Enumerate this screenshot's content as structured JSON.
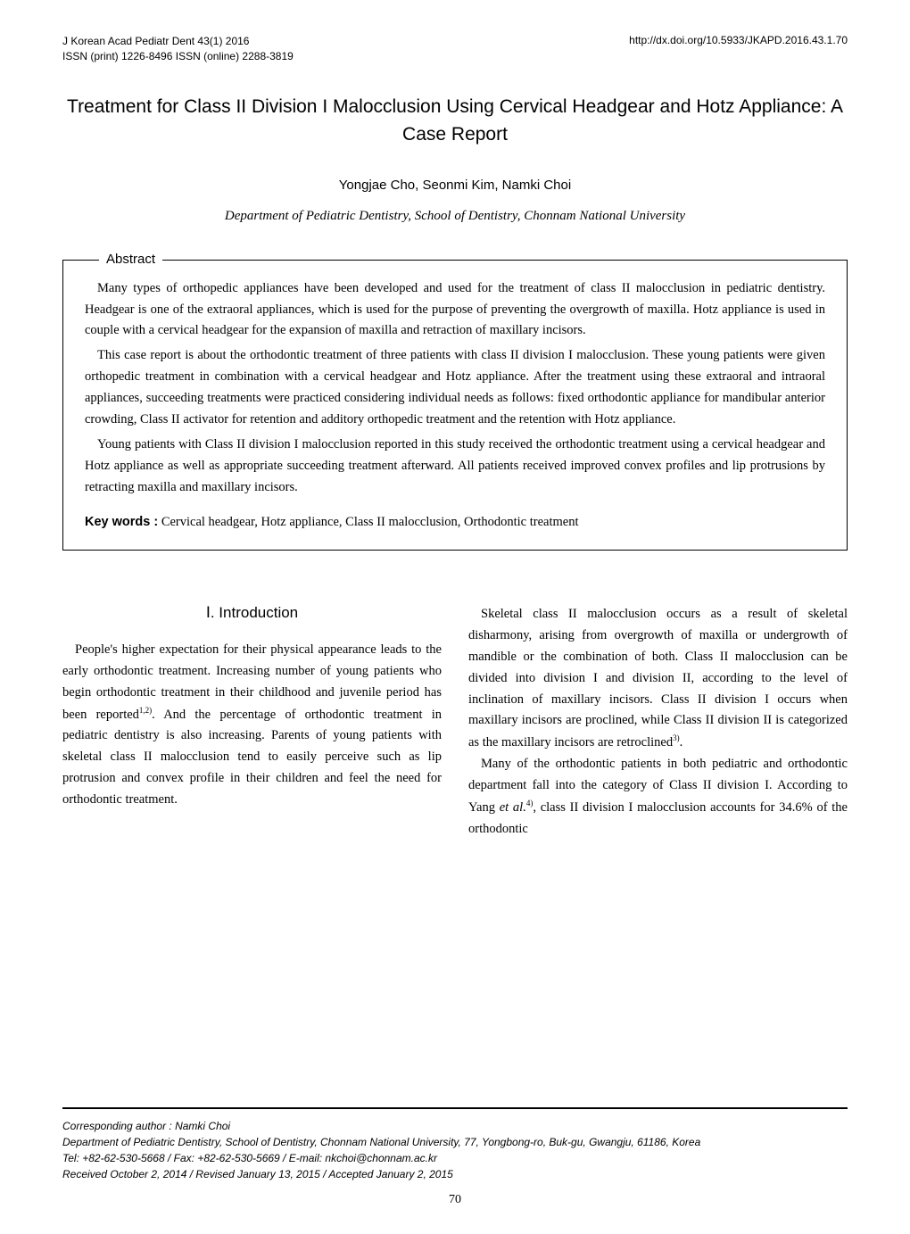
{
  "header": {
    "journal_line": "J Korean Acad Pediatr Dent 43(1) 2016",
    "issn_line": "ISSN (print) 1226-8496 ISSN (online) 2288-3819",
    "doi": "http://dx.doi.org/10.5933/JKAPD.2016.43.1.70"
  },
  "title": "Treatment for Class II Division I Malocclusion Using Cervical Headgear and Hotz Appliance: A Case Report",
  "authors": "Yongjae Cho, Seonmi Kim, Namki Choi",
  "affiliation": "Department of Pediatric Dentistry, School of Dentistry, Chonnam National University",
  "abstract": {
    "label": "Abstract",
    "p1": "Many types of orthopedic appliances have been developed and used for the treatment of class II malocclusion in pediatric dentistry. Headgear is one of the extraoral appliances, which is used for the purpose of preventing the overgrowth of maxilla. Hotz appliance is used in couple with a cervical headgear for the expansion of maxilla and retraction of maxillary incisors.",
    "p2": "This case report is about the orthodontic treatment of three patients with class II division I malocclusion. These young patients were given orthopedic treatment in combination with a cervical headgear and Hotz appliance. After the treatment using these extraoral and intraoral appliances, succeeding treatments were practiced considering individual needs as follows: fixed orthodontic appliance for mandibular anterior crowding, Class II activator for retention and additory orthopedic treatment and the retention with Hotz appliance.",
    "p3": "Young patients with Class II division I malocclusion reported in this study received the orthodontic treatment using a cervical headgear and Hotz appliance as well as appropriate succeeding treatment afterward. All patients received improved convex profiles and lip protrusions by retracting maxilla and maxillary incisors."
  },
  "keywords": {
    "label": "Key words :",
    "text": " Cervical headgear, Hotz appliance, Class II malocclusion, Orthodontic treatment"
  },
  "section_heading": "Ⅰ. Introduction",
  "intro": {
    "left": "People's higher expectation for their physical appearance leads to the early orthodontic treatment. Increasing number of young patients who begin orthodontic treatment in their childhood and juvenile period has been reported1,2). And the percentage of orthodontic treatment in pediatric dentistry is also increasing. Parents of young patients with skeletal class II malocclusion tend to easily perceive such as lip protrusion and convex profile in their children and feel the need for orthodontic treatment.",
    "right_p1": "Skeletal class II malocclusion occurs as a result of skeletal disharmony, arising from overgrowth of maxilla or undergrowth of mandible or the combination of both. Class II malocclusion can be divided into division I and division II, according to the level of inclination of maxillary incisors. Class II division I occurs when maxillary incisors are proclined, while Class II division II is categorized as the maxillary incisors are retroclined3).",
    "right_p2": "Many of the orthodontic patients in both pediatric and orthodontic department fall into the category of Class II division I. According to Yang et al.4), class II division I malocclusion accounts for 34.6% of the orthodontic"
  },
  "footer": {
    "author": "Corresponding author : Namki Choi",
    "dept": "Department of Pediatric Dentistry, School of Dentistry, Chonnam National University, 77, Yongbong-ro, Buk-gu, Gwangju, 61186, Korea",
    "contact": "Tel: +82-62-530-5668 / Fax: +82-62-530-5669 / E-mail: nkchoi@chonnam.ac.kr",
    "dates": "Received October 2, 2014 / Revised January 13, 2015 / Accepted January 2, 2015"
  },
  "page_number": "70"
}
